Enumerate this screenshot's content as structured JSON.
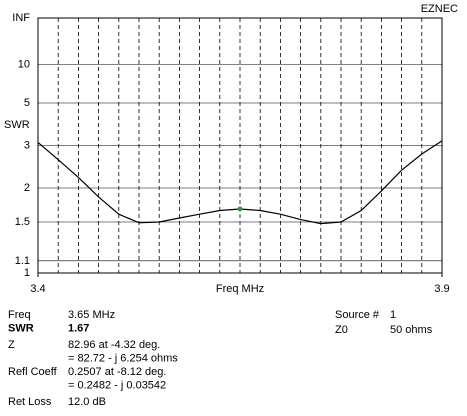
{
  "chart_data": {
    "type": "line",
    "brand": "EZNEC",
    "ylabel": "SWR",
    "xlabel": "Freq MHz",
    "yscale": "reflection",
    "y_top_label": "INF",
    "yticks": [
      1,
      1.1,
      1.5,
      2,
      3,
      5,
      10
    ],
    "xlim": [
      3.4,
      3.9
    ],
    "xticks": [
      3.4,
      3.9
    ],
    "xgrid": [
      3.425,
      3.45,
      3.475,
      3.5,
      3.525,
      3.55,
      3.575,
      3.6,
      3.625,
      3.65,
      3.675,
      3.7,
      3.725,
      3.75,
      3.775,
      3.8,
      3.825,
      3.85,
      3.875
    ],
    "grid": true,
    "x": [
      3.4,
      3.425,
      3.45,
      3.475,
      3.5,
      3.525,
      3.55,
      3.575,
      3.6,
      3.625,
      3.65,
      3.675,
      3.7,
      3.725,
      3.75,
      3.775,
      3.8,
      3.825,
      3.85,
      3.875,
      3.9
    ],
    "series": [
      {
        "color": "#000000",
        "values": [
          3.1,
          2.6,
          2.2,
          1.85,
          1.6,
          1.49,
          1.5,
          1.55,
          1.6,
          1.65,
          1.67,
          1.65,
          1.6,
          1.53,
          1.48,
          1.5,
          1.65,
          1.95,
          2.35,
          2.75,
          3.15
        ]
      }
    ],
    "marker": {
      "x": 3.65,
      "y": 1.67,
      "color": "#3a9a3a"
    },
    "readout": [
      {
        "label": "Freq",
        "lines": [
          "3.65 MHz"
        ]
      },
      {
        "label": "SWR",
        "lines": [
          "1.67"
        ]
      },
      {
        "label": "Z",
        "lines": [
          "82.96 at -4.32 deg.",
          "= 82.72 - j 6.254 ohms"
        ]
      },
      {
        "label": "Refl Coeff",
        "lines": [
          "0.2507 at -8.12 deg.",
          "= 0.2482 - j 0.03542"
        ]
      },
      {
        "label": "Ret Loss",
        "lines": [
          "12.0 dB"
        ]
      }
    ],
    "readout_right": [
      {
        "label": "Source #",
        "value": "1"
      },
      {
        "label": "Z0",
        "value": "50 ohms"
      }
    ]
  }
}
